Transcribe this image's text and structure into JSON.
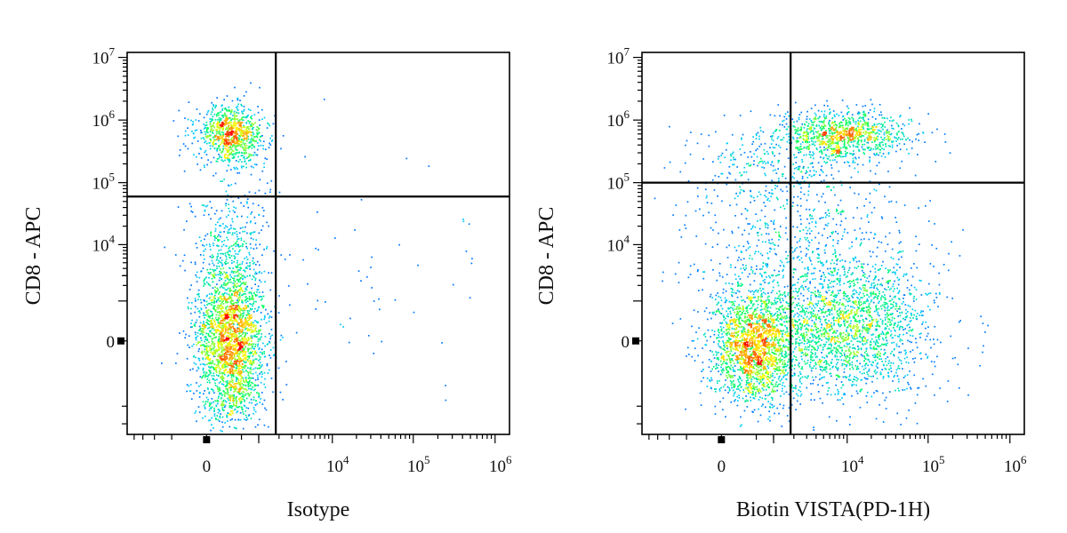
{
  "chart_data": [
    {
      "type": "scatter",
      "subtype": "flow-cytometry-density-dot-plot",
      "xlabel": "Isotype",
      "ylabel": "CD8 - APC",
      "x_scale": "biexponential",
      "y_scale": "biexponential",
      "x_ticks": [
        {
          "value": 0,
          "base": "0",
          "exp": ""
        },
        {
          "value": 10000,
          "base": "10",
          "exp": "4"
        },
        {
          "value": 100000,
          "base": "10",
          "exp": "5"
        },
        {
          "value": 1000000,
          "base": "10",
          "exp": "6"
        }
      ],
      "y_ticks": [
        {
          "value": 0,
          "base": "0",
          "exp": ""
        },
        {
          "value": 10000,
          "base": "10",
          "exp": "4"
        },
        {
          "value": 100000,
          "base": "10",
          "exp": "5"
        },
        {
          "value": 1000000,
          "base": "10",
          "exp": "6"
        },
        {
          "value": 10000000,
          "base": "10",
          "exp": "7"
        }
      ],
      "quadrant_gate": {
        "x": 1800,
        "y": 60000
      },
      "populations": [
        {
          "name": "CD8- cells",
          "x_center": 0,
          "y_center": 0,
          "density": "high"
        },
        {
          "name": "CD8+ cells",
          "x_center": 0,
          "y_center": 700000,
          "density": "high"
        }
      ],
      "colormap": [
        "#0000ff",
        "#00c8ff",
        "#00ff66",
        "#ffff00",
        "#ff7f00",
        "#ff0000"
      ]
    },
    {
      "type": "scatter",
      "subtype": "flow-cytometry-density-dot-plot",
      "xlabel": "Biotin VISTA(PD-1H)",
      "ylabel": "CD8 - APC",
      "x_scale": "biexponential",
      "y_scale": "biexponential",
      "x_ticks": [
        {
          "value": 0,
          "base": "0",
          "exp": ""
        },
        {
          "value": 10000,
          "base": "10",
          "exp": "4"
        },
        {
          "value": 100000,
          "base": "10",
          "exp": "5"
        },
        {
          "value": 1000000,
          "base": "10",
          "exp": "6"
        }
      ],
      "y_ticks": [
        {
          "value": 0,
          "base": "0",
          "exp": ""
        },
        {
          "value": 10000,
          "base": "10",
          "exp": "4"
        },
        {
          "value": 100000,
          "base": "10",
          "exp": "5"
        },
        {
          "value": 1000000,
          "base": "10",
          "exp": "6"
        },
        {
          "value": 10000000,
          "base": "10",
          "exp": "7"
        }
      ],
      "quadrant_gate": {
        "x": 1800,
        "y": 100000
      },
      "populations": [
        {
          "name": "CD8- VISTA- cells",
          "x_center": 0,
          "y_center": 0,
          "density": "high"
        },
        {
          "name": "CD8- VISTA+ cells",
          "x_center": 8000,
          "y_center": 0,
          "density": "medium"
        },
        {
          "name": "CD8+ VISTA+ cells",
          "x_center": 6000,
          "y_center": 700000,
          "density": "high"
        }
      ],
      "colormap": [
        "#0000ff",
        "#00c8ff",
        "#00ff66",
        "#ffff00",
        "#ff7f00",
        "#ff0000"
      ]
    }
  ]
}
